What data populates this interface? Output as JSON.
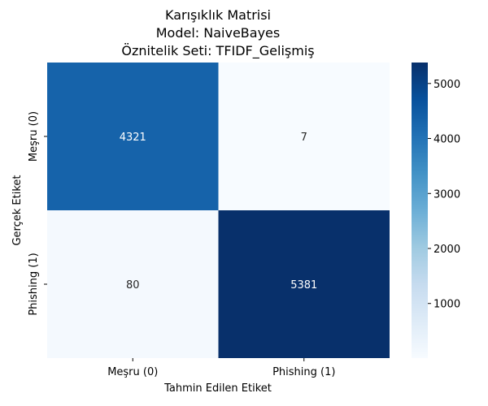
{
  "chart_data": {
    "type": "heatmap",
    "title_lines": [
      "Karışıklık Matrisi",
      "Model: NaiveBayes",
      "Öznitelik Seti: TFIDF_Gelişmiş"
    ],
    "xlabel": "Tahmin Edilen Etiket",
    "ylabel": "Gerçek Etiket",
    "x_categories": [
      "Meşru (0)",
      "Phishing (1)"
    ],
    "y_categories": [
      "Meşru (0)",
      "Phishing (1)"
    ],
    "values": [
      [
        4321,
        7
      ],
      [
        80,
        5381
      ]
    ],
    "colorbar": {
      "cmap": "Blues",
      "vmin": 7,
      "vmax": 5381,
      "ticks": [
        1000,
        2000,
        3000,
        4000,
        5000
      ]
    },
    "legend": "colorbar-right"
  }
}
